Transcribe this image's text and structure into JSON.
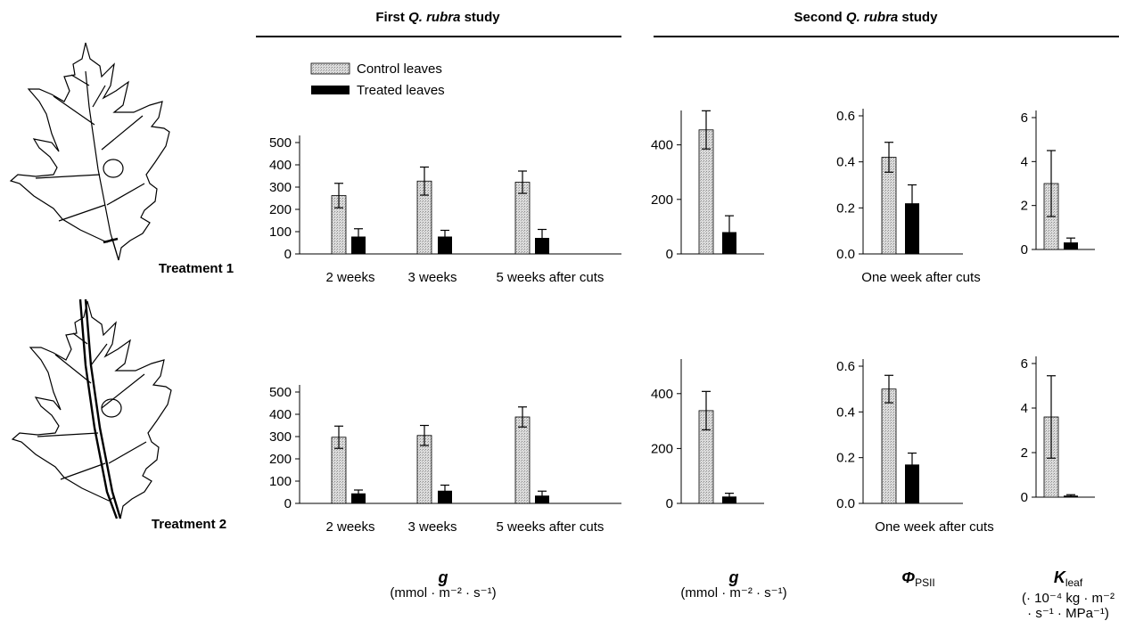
{
  "figure": {
    "study1_title_prefix": "First ",
    "study1_title_species": "Q. rubra",
    "study1_title_suffix": " study",
    "study2_title_prefix": "Second ",
    "study2_title_species": "Q. rubra",
    "study2_title_suffix": " study",
    "treatment1_label": "Treatment 1",
    "treatment2_label": "Treatment 2",
    "legend": {
      "control": "Control leaves",
      "treated": "Treated leaves"
    },
    "x_labels_study1": [
      "2 weeks",
      "3 weeks",
      "5 weeks after cuts"
    ],
    "x_label_study2": "One week after cuts",
    "unit_labels": {
      "g_symbol": "g",
      "g_unit": "(mmol · m⁻² · s⁻¹)",
      "phi_symbol": "Φ",
      "phi_sub": "PSII",
      "k_symbol": "K",
      "k_sub": "leaf",
      "k_unit_line1": "(· 10⁻⁴ kg · m⁻²",
      "k_unit_line2": "· s⁻¹ · MPa⁻¹)"
    },
    "colors": {
      "control_fill": "#d4d4d4",
      "treated_fill": "#000000"
    }
  },
  "chart_data": [
    {
      "id": "t1_study1_g",
      "type": "bar",
      "categories": [
        "2 weeks",
        "3 weeks",
        "5 weeks after cuts"
      ],
      "series": [
        {
          "name": "Control leaves",
          "values": [
            262,
            327,
            322
          ],
          "errors": [
            55,
            63,
            50
          ]
        },
        {
          "name": "Treated leaves",
          "values": [
            78,
            78,
            72
          ],
          "errors": [
            35,
            28,
            38
          ]
        }
      ],
      "ylim": [
        0,
        500
      ],
      "yticks": [
        0,
        100,
        200,
        300,
        400,
        500
      ]
    },
    {
      "id": "t1_study2_g",
      "type": "bar",
      "categories": [
        ""
      ],
      "series": [
        {
          "name": "Control leaves",
          "values": [
            455
          ],
          "errors": [
            70
          ]
        },
        {
          "name": "Treated leaves",
          "values": [
            80
          ],
          "errors": [
            60
          ]
        }
      ],
      "ylim": [
        0,
        500
      ],
      "yticks": [
        0,
        200,
        400
      ]
    },
    {
      "id": "t1_study2_phi",
      "type": "bar",
      "categories": [
        "One week after cuts"
      ],
      "series": [
        {
          "name": "Control leaves",
          "values": [
            0.42
          ],
          "errors": [
            0.065
          ]
        },
        {
          "name": "Treated leaves",
          "values": [
            0.22
          ],
          "errors": [
            0.08
          ]
        }
      ],
      "ylim": [
        0,
        0.6
      ],
      "yticks": [
        0.0,
        0.2,
        0.4,
        0.6
      ]
    },
    {
      "id": "t1_study2_k",
      "type": "bar",
      "categories": [
        ""
      ],
      "series": [
        {
          "name": "Control leaves",
          "values": [
            3.0
          ],
          "errors": [
            1.5
          ]
        },
        {
          "name": "Treated leaves",
          "values": [
            0.32
          ],
          "errors": [
            0.2
          ]
        }
      ],
      "ylim": [
        0,
        6
      ],
      "yticks": [
        0,
        2,
        4,
        6
      ]
    },
    {
      "id": "t2_study1_g",
      "type": "bar",
      "categories": [
        "2 weeks",
        "3 weeks",
        "5 weeks after cuts"
      ],
      "series": [
        {
          "name": "Control leaves",
          "values": [
            297,
            305,
            388
          ],
          "errors": [
            50,
            45,
            45
          ]
        },
        {
          "name": "Treated leaves",
          "values": [
            45,
            57,
            35
          ],
          "errors": [
            15,
            25,
            20
          ]
        }
      ],
      "ylim": [
        0,
        500
      ],
      "yticks": [
        0,
        100,
        200,
        300,
        400,
        500
      ]
    },
    {
      "id": "t2_study2_g",
      "type": "bar",
      "categories": [
        ""
      ],
      "series": [
        {
          "name": "Control leaves",
          "values": [
            338
          ],
          "errors": [
            70
          ]
        },
        {
          "name": "Treated leaves",
          "values": [
            25
          ],
          "errors": [
            12
          ]
        }
      ],
      "ylim": [
        0,
        500
      ],
      "yticks": [
        0,
        200,
        400
      ]
    },
    {
      "id": "t2_study2_phi",
      "type": "bar",
      "categories": [
        "One week after cuts"
      ],
      "series": [
        {
          "name": "Control leaves",
          "values": [
            0.5
          ],
          "errors": [
            0.06
          ]
        },
        {
          "name": "Treated leaves",
          "values": [
            0.17
          ],
          "errors": [
            0.05
          ]
        }
      ],
      "ylim": [
        0,
        0.6
      ],
      "yticks": [
        0.0,
        0.2,
        0.4,
        0.6
      ]
    },
    {
      "id": "t2_study2_k",
      "type": "bar",
      "categories": [
        ""
      ],
      "series": [
        {
          "name": "Control leaves",
          "values": [
            3.6
          ],
          "errors": [
            1.85
          ]
        },
        {
          "name": "Treated leaves",
          "values": [
            0.07
          ],
          "errors": [
            0.04
          ]
        }
      ],
      "ylim": [
        0,
        6
      ],
      "yticks": [
        0,
        2,
        4,
        6
      ]
    }
  ]
}
